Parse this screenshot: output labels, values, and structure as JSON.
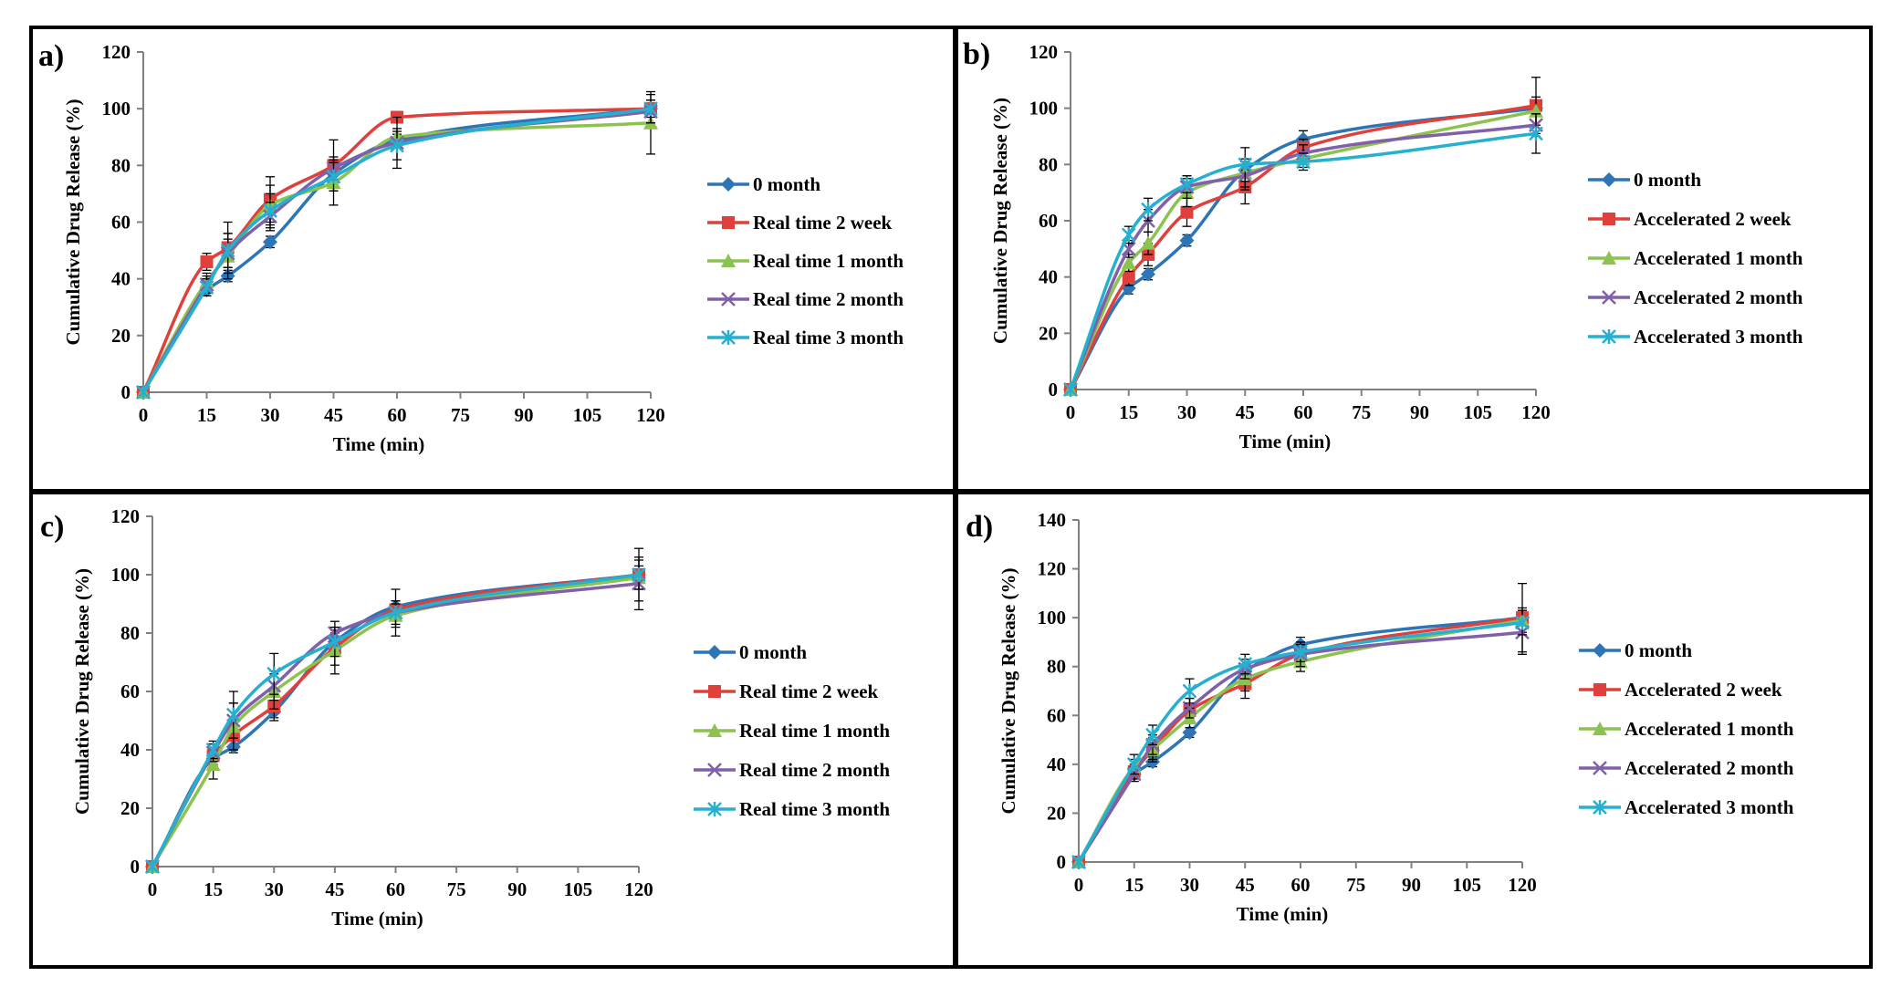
{
  "colors": {
    "blue": "#2E75B6",
    "red": "#E0403C",
    "green": "#8CC24F",
    "purple": "#8060A8",
    "cyan": "#26B0D0"
  },
  "chart_data": [
    {
      "id": "a",
      "type": "line",
      "panel_label": "a)",
      "title": "",
      "xlabel": "Time (min)",
      "ylabel": "Cumulative Drug Release (%)",
      "xticks": [
        "0",
        "15",
        "30",
        "45",
        "60",
        "75",
        "90",
        "105",
        "120"
      ],
      "yticks": [
        "0",
        "20",
        "40",
        "60",
        "80",
        "100",
        "120"
      ],
      "xlim": [
        0,
        120
      ],
      "ylim": [
        0,
        120
      ],
      "legend_position": "right",
      "x": [
        0,
        15,
        20,
        30,
        45,
        60,
        120
      ],
      "series": [
        {
          "name": "0 month",
          "color": "#2E75B6",
          "marker": "diamond",
          "values": [
            0,
            36,
            41,
            53,
            77,
            89,
            100
          ],
          "err": [
            0,
            2,
            2,
            2,
            3,
            2,
            2
          ]
        },
        {
          "name": "Real time 2 week",
          "color": "#E0403C",
          "marker": "square",
          "values": [
            0,
            46,
            51,
            68,
            80,
            97,
            100
          ],
          "err": [
            0,
            3,
            9,
            8,
            9,
            2,
            3
          ]
        },
        {
          "name": "Real time 1 month",
          "color": "#8CC24F",
          "marker": "triangle",
          "values": [
            0,
            39,
            48,
            66,
            74,
            90,
            95
          ],
          "err": [
            0,
            3,
            8,
            7,
            8,
            3,
            11
          ]
        },
        {
          "name": "Real time 2 month",
          "color": "#8060A8",
          "marker": "x",
          "values": [
            0,
            38,
            49,
            62,
            79,
            88,
            99
          ],
          "err": [
            0,
            3,
            5,
            5,
            4,
            9,
            4
          ]
        },
        {
          "name": "Real time 3 month",
          "color": "#26B0D0",
          "marker": "star",
          "values": [
            0,
            37,
            50,
            64,
            76,
            87,
            100
          ],
          "err": [
            0,
            3,
            6,
            6,
            5,
            5,
            5
          ]
        }
      ]
    },
    {
      "id": "b",
      "type": "line",
      "panel_label": "b)",
      "title": "",
      "xlabel": "Time (min)",
      "ylabel": "Cumulative Drug Release (%)",
      "xticks": [
        "0",
        "15",
        "30",
        "45",
        "60",
        "75",
        "90",
        "105",
        "120"
      ],
      "yticks": [
        "0",
        "20",
        "40",
        "60",
        "80",
        "100",
        "120"
      ],
      "xlim": [
        0,
        120
      ],
      "ylim": [
        0,
        120
      ],
      "legend_position": "right",
      "x": [
        0,
        15,
        20,
        30,
        45,
        60,
        120
      ],
      "series": [
        {
          "name": "0 month",
          "color": "#2E75B6",
          "marker": "diamond",
          "values": [
            0,
            36,
            41,
            53,
            78,
            89,
            100
          ],
          "err": [
            0,
            2,
            2,
            2,
            3,
            3,
            2
          ]
        },
        {
          "name": "Accelerated  2 week",
          "color": "#E0403C",
          "marker": "square",
          "values": [
            0,
            40,
            48,
            63,
            72,
            86,
            101
          ],
          "err": [
            0,
            3,
            4,
            5,
            6,
            3,
            10
          ]
        },
        {
          "name": "Accelerated 1 month",
          "color": "#8CC24F",
          "marker": "triangle",
          "values": [
            0,
            45,
            52,
            70,
            77,
            82,
            99
          ],
          "err": [
            0,
            3,
            4,
            5,
            5,
            3,
            5
          ]
        },
        {
          "name": "Accelerated 2 month",
          "color": "#8060A8",
          "marker": "x",
          "values": [
            0,
            50,
            60,
            72,
            76,
            84,
            94
          ],
          "err": [
            0,
            3,
            4,
            4,
            5,
            3,
            4
          ]
        },
        {
          "name": "Accelerated 3 month",
          "color": "#26B0D0",
          "marker": "star",
          "values": [
            0,
            55,
            64,
            73,
            80,
            81,
            91
          ],
          "err": [
            0,
            3,
            4,
            3,
            6,
            3,
            7
          ]
        }
      ]
    },
    {
      "id": "c",
      "type": "line",
      "panel_label": "c)",
      "title": "",
      "xlabel": "Time (min)",
      "ylabel": "Cumulative Drug Release (%)",
      "xticks": [
        "0",
        "15",
        "30",
        "45",
        "60",
        "75",
        "90",
        "105",
        "120"
      ],
      "yticks": [
        "0",
        "20",
        "40",
        "60",
        "80",
        "100",
        "120"
      ],
      "xlim": [
        0,
        120
      ],
      "ylim": [
        0,
        120
      ],
      "legend_position": "right",
      "x": [
        0,
        15,
        20,
        30,
        45,
        60,
        120
      ],
      "series": [
        {
          "name": "0 month",
          "color": "#2E75B6",
          "marker": "diamond",
          "values": [
            0,
            37,
            41,
            53,
            77,
            89,
            100
          ],
          "err": [
            0,
            2,
            2,
            2,
            3,
            2,
            2
          ]
        },
        {
          "name": "Real time 2 week",
          "color": "#E0403C",
          "marker": "square",
          "values": [
            0,
            38,
            45,
            55,
            75,
            88,
            100
          ],
          "err": [
            0,
            4,
            5,
            5,
            6,
            3,
            9
          ]
        },
        {
          "name": "Real time 1 month",
          "color": "#8CC24F",
          "marker": "triangle",
          "values": [
            0,
            35,
            48,
            60,
            74,
            86,
            99
          ],
          "err": [
            0,
            5,
            8,
            6,
            8,
            4,
            4
          ]
        },
        {
          "name": "Real time 2 month",
          "color": "#8060A8",
          "marker": "x",
          "values": [
            0,
            39,
            50,
            62,
            80,
            87,
            97
          ],
          "err": [
            0,
            3,
            6,
            5,
            4,
            8,
            9
          ]
        },
        {
          "name": "Real time 3 month",
          "color": "#26B0D0",
          "marker": "star",
          "values": [
            0,
            40,
            52,
            66,
            77,
            87,
            100
          ],
          "err": [
            0,
            3,
            8,
            7,
            5,
            4,
            5
          ]
        }
      ]
    },
    {
      "id": "d",
      "type": "line",
      "panel_label": "d)",
      "title": "",
      "xlabel": "Time (min)",
      "ylabel": "Cumulative Drug Release (%)",
      "xticks": [
        "0",
        "15",
        "30",
        "45",
        "60",
        "75",
        "90",
        "105",
        "120"
      ],
      "yticks": [
        "0",
        "20",
        "40",
        "60",
        "80",
        "100",
        "120",
        "140"
      ],
      "xlim": [
        0,
        120
      ],
      "ylim": [
        0,
        140
      ],
      "legend_position": "right",
      "x": [
        0,
        15,
        20,
        30,
        45,
        60,
        120
      ],
      "series": [
        {
          "name": "0 month",
          "color": "#2E75B6",
          "marker": "diamond",
          "values": [
            0,
            36,
            41,
            53,
            78,
            89,
            100
          ],
          "err": [
            0,
            2,
            2,
            2,
            3,
            3,
            2
          ]
        },
        {
          "name": "Accelerated  2 week",
          "color": "#E0403C",
          "marker": "square",
          "values": [
            0,
            37,
            46,
            62,
            73,
            85,
            100
          ],
          "err": [
            0,
            3,
            5,
            5,
            6,
            4,
            14
          ]
        },
        {
          "name": "Accelerated 1 month",
          "color": "#8CC24F",
          "marker": "triangle",
          "values": [
            0,
            39,
            46,
            59,
            75,
            82,
            99
          ],
          "err": [
            0,
            3,
            4,
            4,
            5,
            4,
            5
          ]
        },
        {
          "name": "Accelerated 2 month",
          "color": "#8060A8",
          "marker": "x",
          "values": [
            0,
            36,
            48,
            63,
            79,
            85,
            94
          ],
          "err": [
            0,
            3,
            4,
            4,
            4,
            5,
            9
          ]
        },
        {
          "name": "Accelerated 3 month",
          "color": "#26B0D0",
          "marker": "star",
          "values": [
            0,
            40,
            52,
            70,
            81,
            86,
            98
          ],
          "err": [
            0,
            4,
            4,
            5,
            4,
            4,
            5
          ]
        }
      ]
    }
  ]
}
